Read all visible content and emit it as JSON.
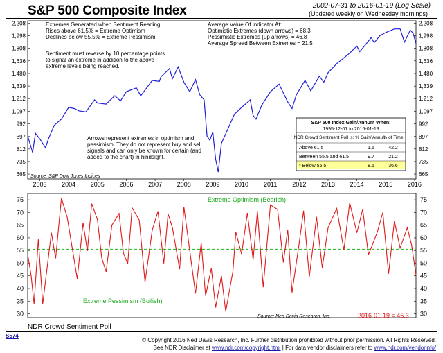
{
  "title": "S&P 500 Composite Index",
  "date_range": "2002-07-31 to 2016-01-19 (Log Scale)",
  "update_note": "(Updated weekly on Wednesday mornings)",
  "top_panel": {
    "note_left": [
      "Extremes Generated when Sentiment Reading:",
      "Rises above 61.5% = Extreme Optimism",
      "Declines below 55.5% = Extreme Pessimism"
    ],
    "note_reverse": [
      "Sentiment must reverse by 10 percentage points",
      "to signal an extreme in addition to the above",
      "extreme levels being reached."
    ],
    "note_right": [
      "Average Value Of Indicator At:",
      "Optimistic Extremes (down arrows) = 68.3",
      "Pessimistic Extremes (up arrows) = 46.8",
      "Average Spread Between Extremes = 21.5"
    ],
    "note_arrows": [
      "Arrows represent extremes in optimism and",
      "pessimism. They do not represent buy and sell",
      "signals and can only be known for certain (and",
      "added to the chart) in hindsight."
    ],
    "source": "Source: S&P Dow Jones Indices",
    "table": {
      "title": "S&P 500 Index Gain/Annum When:",
      "subtitle": "1995-12-01 to 2016-01-19",
      "headers": [
        "NDR Crowd Sentiment Poll is:",
        "% Gain/ Annum",
        "% of Time"
      ],
      "rows": [
        [
          "Above 61.5",
          "1.6",
          "42.2"
        ],
        [
          "Between 55.5 and 61.5",
          "9.7",
          "21.2"
        ],
        [
          "* Below 55.5",
          "8.5",
          "36.6"
        ]
      ]
    }
  },
  "bottom_panel": {
    "label_optimism": "Extreme Optimism (Bearish)",
    "label_pessimism": "Extreme Pessimism (Bullish)",
    "source": "Source: Ned Davis Research, Inc.",
    "current": "2016-01-19 = 45.3",
    "footer_title": "NDR Crowd Sentiment Poll"
  },
  "footer": {
    "code": "S574",
    "copyright": "© Copyright 2016 Ned Davis Research, Inc. Further distribution prohibited without prior permission. All Rights Reserved.",
    "disclaimer_prefix": "See NDR Disclaimer at",
    "disclaimer_link": "www.ndr.com/copyright.html",
    "vendor_prefix": "For data vendor disclaimers refer to",
    "vendor_link": "www.ndr.com/vendorinfo/"
  },
  "colors": {
    "line": "#1f1fd8",
    "sentiment": "#e01818",
    "threshold": "#18b818",
    "label_green": "#18a818",
    "current_red": "#e01818",
    "highlight": "#ffff99"
  },
  "chart_data": [
    {
      "type": "line",
      "title": "S&P 500 Composite Index",
      "scale": "log",
      "y_ticks": [
        665,
        735,
        812,
        897,
        992,
        1097,
        1212,
        1339,
        1480,
        1636,
        1808,
        1998,
        2208
      ],
      "ylim": [
        640,
        2250
      ],
      "x_ticks": [
        "2003",
        "2004",
        "2005",
        "2006",
        "2007",
        "2008",
        "2009",
        "2010",
        "2011",
        "2012",
        "2013",
        "2014",
        "2015",
        "2016"
      ],
      "x_range": [
        2002.58,
        2016.05
      ],
      "series": [
        {
          "values": [
            [
              2002.58,
              900
            ],
            [
              2002.75,
              790
            ],
            [
              2002.85,
              920
            ],
            [
              2003.0,
              880
            ],
            [
              2003.2,
              820
            ],
            [
              2003.3,
              880
            ],
            [
              2003.5,
              980
            ],
            [
              2003.75,
              1030
            ],
            [
              2004.0,
              1130
            ],
            [
              2004.2,
              1120
            ],
            [
              2004.35,
              1100
            ],
            [
              2004.6,
              1090
            ],
            [
              2004.9,
              1200
            ],
            [
              2005.0,
              1170
            ],
            [
              2005.3,
              1160
            ],
            [
              2005.6,
              1240
            ],
            [
              2005.8,
              1190
            ],
            [
              2006.0,
              1280
            ],
            [
              2006.35,
              1320
            ],
            [
              2006.5,
              1240
            ],
            [
              2006.9,
              1400
            ],
            [
              2007.15,
              1390
            ],
            [
              2007.2,
              1440
            ],
            [
              2007.5,
              1540
            ],
            [
              2007.6,
              1420
            ],
            [
              2007.8,
              1560
            ],
            [
              2008.0,
              1380
            ],
            [
              2008.2,
              1280
            ],
            [
              2008.4,
              1410
            ],
            [
              2008.55,
              1250
            ],
            [
              2008.7,
              1200
            ],
            [
              2008.8,
              900
            ],
            [
              2008.9,
              870
            ],
            [
              2009.0,
              930
            ],
            [
              2009.1,
              750
            ],
            [
              2009.19,
              676
            ],
            [
              2009.3,
              850
            ],
            [
              2009.5,
              940
            ],
            [
              2009.75,
              1070
            ],
            [
              2010.0,
              1130
            ],
            [
              2010.3,
              1200
            ],
            [
              2010.4,
              1060
            ],
            [
              2010.5,
              1030
            ],
            [
              2010.7,
              1150
            ],
            [
              2011.0,
              1280
            ],
            [
              2011.3,
              1360
            ],
            [
              2011.6,
              1180
            ],
            [
              2011.75,
              1120
            ],
            [
              2011.9,
              1250
            ],
            [
              2012.2,
              1400
            ],
            [
              2012.4,
              1290
            ],
            [
              2012.7,
              1450
            ],
            [
              2012.85,
              1380
            ],
            [
              2013.0,
              1490
            ],
            [
              2013.3,
              1600
            ],
            [
              2013.5,
              1660
            ],
            [
              2013.75,
              1740
            ],
            [
              2014.0,
              1840
            ],
            [
              2014.1,
              1760
            ],
            [
              2014.5,
              1970
            ],
            [
              2014.6,
              1890
            ],
            [
              2014.8,
              2000
            ],
            [
              2015.0,
              2050
            ],
            [
              2015.3,
              2110
            ],
            [
              2015.5,
              2110
            ],
            [
              2015.65,
              1900
            ],
            [
              2015.85,
              2090
            ],
            [
              2015.95,
              2040
            ],
            [
              2016.05,
              1880
            ]
          ]
        }
      ]
    },
    {
      "type": "line",
      "title": "NDR Crowd Sentiment Poll",
      "y_ticks": [
        30,
        35,
        40,
        45,
        50,
        55,
        60,
        65,
        70,
        75
      ],
      "ylim": [
        28.5,
        77.5
      ],
      "thresholds": [
        61.5,
        55.5
      ],
      "x_ticks": [
        "2003",
        "2004",
        "2005",
        "2006",
        "2007",
        "2008",
        "2009",
        "2010",
        "2011",
        "2012",
        "2013",
        "2014",
        "2015",
        "2016"
      ],
      "x_range": [
        2002.58,
        2016.05
      ],
      "series": [
        {
          "values": [
            [
              2002.58,
              53.5
            ],
            [
              2002.7,
              45
            ],
            [
              2002.8,
              33.9
            ],
            [
              2002.95,
              59.4
            ],
            [
              2003.1,
              33.9
            ],
            [
              2003.4,
              62
            ],
            [
              2003.55,
              51.9
            ],
            [
              2003.75,
              75.7
            ],
            [
              2003.95,
              68.1
            ],
            [
              2004.3,
              43.8
            ],
            [
              2004.5,
              66
            ],
            [
              2004.65,
              54.8
            ],
            [
              2004.8,
              73.5
            ],
            [
              2005.0,
              67.1
            ],
            [
              2005.15,
              52
            ],
            [
              2005.3,
              46.6
            ],
            [
              2005.5,
              65
            ],
            [
              2005.75,
              69.6
            ],
            [
              2005.9,
              54
            ],
            [
              2006.05,
              49.7
            ],
            [
              2006.2,
              71.9
            ],
            [
              2006.45,
              67
            ],
            [
              2006.65,
              42.5
            ],
            [
              2006.9,
              63
            ],
            [
              2007.1,
              70.5
            ],
            [
              2007.3,
              49.9
            ],
            [
              2007.45,
              69.5
            ],
            [
              2007.6,
              64
            ],
            [
              2007.85,
              47.6
            ],
            [
              2008.0,
              72.2
            ],
            [
              2008.2,
              55
            ],
            [
              2008.4,
              38
            ],
            [
              2008.6,
              58.1
            ],
            [
              2008.75,
              37.1
            ],
            [
              2008.95,
              48
            ],
            [
              2009.1,
              32.5
            ],
            [
              2009.3,
              45
            ],
            [
              2009.45,
              30.9
            ],
            [
              2009.7,
              46.8
            ],
            [
              2009.8,
              62.3
            ],
            [
              2010.0,
              53.6
            ],
            [
              2010.2,
              69.8
            ],
            [
              2010.4,
              51.3
            ],
            [
              2010.55,
              70.5
            ],
            [
              2010.75,
              40.5
            ],
            [
              2011.0,
              73.0
            ],
            [
              2011.25,
              71.2
            ],
            [
              2011.45,
              50.3
            ],
            [
              2011.6,
              63.2
            ],
            [
              2011.75,
              38.4
            ],
            [
              2012.0,
              58
            ],
            [
              2012.15,
              70.7
            ],
            [
              2012.35,
              44.6
            ],
            [
              2012.6,
              68.3
            ],
            [
              2012.8,
              48.2
            ],
            [
              2013.0,
              64
            ],
            [
              2013.3,
              71.6
            ],
            [
              2013.55,
              55.2
            ],
            [
              2013.75,
              73.9
            ],
            [
              2014.0,
              62
            ],
            [
              2014.2,
              71.3
            ],
            [
              2014.4,
              53.3
            ],
            [
              2014.7,
              62
            ],
            [
              2014.9,
              70
            ],
            [
              2015.1,
              45.8
            ],
            [
              2015.3,
              66.6
            ],
            [
              2015.5,
              56
            ],
            [
              2015.75,
              64
            ],
            [
              2015.9,
              57
            ],
            [
              2016.05,
              45.3
            ]
          ]
        }
      ]
    }
  ]
}
